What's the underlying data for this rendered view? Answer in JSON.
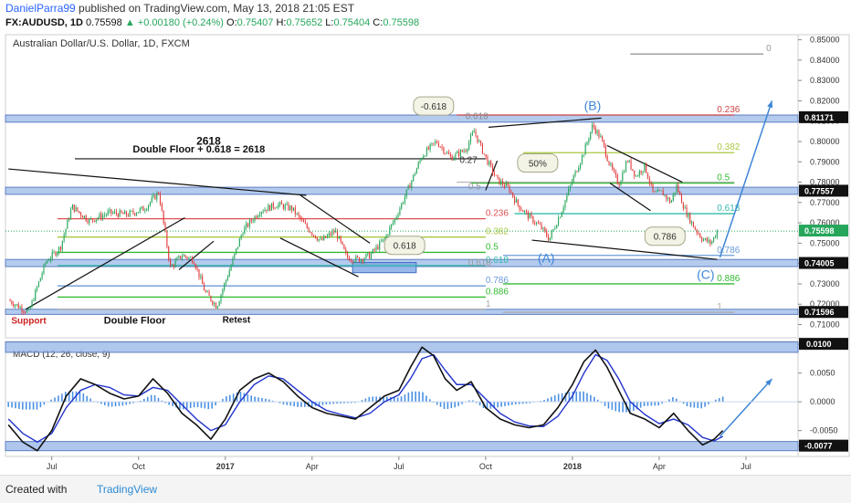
{
  "header": {
    "author": "DanielParra99",
    "published": " published on TradingView.com, May 13, 2018 21:05 EST",
    "symbol": "FX:AUDUSD, 1D",
    "last": "0.75598",
    "change": "▲ +0.00180 (+0.24%)",
    "open": "0.75407",
    "high": "0.75652",
    "low": "0.75404",
    "close": "0.75598"
  },
  "footer": {
    "created_with": "Created with",
    "brand": "TradingView"
  },
  "colors": {
    "bull": "#26a65b",
    "bear": "#e33b3b",
    "zone": "#9bb9e8",
    "macd": "#111111",
    "signal": "#2233cc",
    "hist": "#4a90e2",
    "arrow": "#3d86d6"
  },
  "chart_data": {
    "type": "candlestick",
    "title": "Australian Dollar/U.S. Dollar, 1D, FXCM",
    "x_tick_labels": [
      "Jul",
      "Oct",
      "2017",
      "Apr",
      "Jul",
      "Oct",
      "2018",
      "Apr",
      "Jul"
    ],
    "x_tick_positions_month": [
      1,
      4,
      7,
      10,
      13,
      16,
      19,
      22,
      25
    ],
    "xlim_month": [
      -0.6,
      26.8
    ],
    "price_axis": {
      "ylim": [
        0.7035,
        0.8525
      ],
      "tick_labels": [
        "0.85000",
        "0.84000",
        "0.83000",
        "0.82000",
        "0.81000",
        "0.80000",
        "0.79000",
        "0.78000",
        "0.77000",
        "0.76000",
        "0.75000",
        "0.74000",
        "0.73000",
        "0.72000",
        "0.71000"
      ],
      "ticks": [
        0.85,
        0.84,
        0.83,
        0.82,
        0.81,
        0.8,
        0.79,
        0.78,
        0.77,
        0.76,
        0.75,
        0.74,
        0.73,
        0.72,
        0.71
      ],
      "price_labels": [
        {
          "value": 0.81171,
          "text": "0.81171",
          "color": "#111111"
        },
        {
          "value": 0.77557,
          "text": "0.77557",
          "color": "#111111"
        },
        {
          "value": 0.75598,
          "text": "0.75598",
          "color": "#26a65b"
        },
        {
          "value": 0.74005,
          "text": "0.74005",
          "color": "#111111"
        },
        {
          "value": 0.71596,
          "text": "0.71596",
          "color": "#111111"
        }
      ]
    },
    "macd_axis": {
      "title": "MACD (12, 26, close, 9)",
      "ylim": [
        -0.0095,
        0.0105
      ],
      "tick_labels": [
        "0.0100",
        "0.0050",
        "0.0000",
        "-0.0050",
        "-0.0077"
      ],
      "ticks": [
        0.01,
        0.005,
        0.0,
        -0.005,
        -0.0077
      ]
    },
    "price_path": [
      [
        -0.5,
        0.722
      ],
      [
        0.2,
        0.716
      ],
      [
        0.8,
        0.741
      ],
      [
        1.3,
        0.748
      ],
      [
        1.7,
        0.768
      ],
      [
        2.3,
        0.761
      ],
      [
        3.0,
        0.765
      ],
      [
        3.6,
        0.764
      ],
      [
        4.2,
        0.767
      ],
      [
        4.7,
        0.775
      ],
      [
        5.1,
        0.738
      ],
      [
        5.5,
        0.744
      ],
      [
        5.9,
        0.742
      ],
      [
        6.3,
        0.726
      ],
      [
        6.7,
        0.719
      ],
      [
        7.1,
        0.735
      ],
      [
        7.6,
        0.756
      ],
      [
        8.2,
        0.766
      ],
      [
        8.8,
        0.769
      ],
      [
        9.3,
        0.767
      ],
      [
        9.8,
        0.758
      ],
      [
        10.3,
        0.751
      ],
      [
        10.8,
        0.756
      ],
      [
        11.2,
        0.743
      ],
      [
        11.6,
        0.742
      ],
      [
        12.0,
        0.744
      ],
      [
        12.5,
        0.752
      ],
      [
        12.9,
        0.763
      ],
      [
        13.3,
        0.776
      ],
      [
        13.8,
        0.793
      ],
      [
        14.3,
        0.8
      ],
      [
        14.8,
        0.792
      ],
      [
        15.3,
        0.796
      ],
      [
        15.6,
        0.805
      ],
      [
        16.0,
        0.792
      ],
      [
        16.4,
        0.781
      ],
      [
        16.8,
        0.777
      ],
      [
        17.1,
        0.769
      ],
      [
        17.5,
        0.763
      ],
      [
        17.9,
        0.758
      ],
      [
        18.2,
        0.752
      ],
      [
        18.6,
        0.765
      ],
      [
        19.0,
        0.781
      ],
      [
        19.4,
        0.795
      ],
      [
        19.7,
        0.808
      ],
      [
        20.0,
        0.801
      ],
      [
        20.3,
        0.788
      ],
      [
        20.6,
        0.779
      ],
      [
        20.9,
        0.791
      ],
      [
        21.2,
        0.783
      ],
      [
        21.5,
        0.788
      ],
      [
        21.8,
        0.774
      ],
      [
        22.1,
        0.775
      ],
      [
        22.4,
        0.77
      ],
      [
        22.6,
        0.778
      ],
      [
        22.9,
        0.766
      ],
      [
        23.2,
        0.758
      ],
      [
        23.5,
        0.752
      ],
      [
        23.8,
        0.75
      ],
      [
        24.0,
        0.756
      ]
    ],
    "macd_path": [
      [
        -0.5,
        -0.004
      ],
      [
        0.0,
        -0.007
      ],
      [
        0.5,
        -0.0085
      ],
      [
        1.0,
        -0.005
      ],
      [
        1.5,
        0.001
      ],
      [
        2.0,
        0.004
      ],
      [
        2.5,
        0.003
      ],
      [
        3.0,
        0.0015
      ],
      [
        3.5,
        0.0005
      ],
      [
        4.0,
        0.001
      ],
      [
        4.5,
        0.004
      ],
      [
        5.0,
        0.0015
      ],
      [
        5.5,
        -0.002
      ],
      [
        6.0,
        -0.004
      ],
      [
        6.5,
        -0.0065
      ],
      [
        7.0,
        -0.003
      ],
      [
        7.5,
        0.002
      ],
      [
        8.0,
        0.004
      ],
      [
        8.5,
        0.005
      ],
      [
        9.0,
        0.0035
      ],
      [
        9.5,
        0.001
      ],
      [
        10.0,
        -0.001
      ],
      [
        10.5,
        -0.002
      ],
      [
        11.0,
        -0.0025
      ],
      [
        11.5,
        -0.003
      ],
      [
        12.0,
        -0.001
      ],
      [
        12.5,
        0.001
      ],
      [
        13.0,
        0.002
      ],
      [
        13.4,
        0.006
      ],
      [
        13.8,
        0.0095
      ],
      [
        14.2,
        0.008
      ],
      [
        14.6,
        0.004
      ],
      [
        15.0,
        0.002
      ],
      [
        15.5,
        0.0035
      ],
      [
        16.0,
        -0.001
      ],
      [
        16.5,
        -0.003
      ],
      [
        17.0,
        -0.004
      ],
      [
        17.5,
        -0.0045
      ],
      [
        18.0,
        -0.004
      ],
      [
        18.5,
        -0.001
      ],
      [
        19.0,
        0.003
      ],
      [
        19.4,
        0.007
      ],
      [
        19.8,
        0.009
      ],
      [
        20.2,
        0.006
      ],
      [
        20.6,
        0.002
      ],
      [
        21.0,
        -0.002
      ],
      [
        21.5,
        -0.003
      ],
      [
        22.0,
        -0.0045
      ],
      [
        22.5,
        -0.002
      ],
      [
        23.0,
        -0.005
      ],
      [
        23.5,
        -0.0075
      ],
      [
        23.9,
        -0.0065
      ],
      [
        24.2,
        -0.005
      ]
    ],
    "signal_path": [
      [
        -0.5,
        -0.003
      ],
      [
        0.0,
        -0.0055
      ],
      [
        0.5,
        -0.007
      ],
      [
        1.0,
        -0.0055
      ],
      [
        1.5,
        -0.001
      ],
      [
        2.0,
        0.002
      ],
      [
        2.5,
        0.003
      ],
      [
        3.0,
        0.0025
      ],
      [
        3.5,
        0.0012
      ],
      [
        4.0,
        0.001
      ],
      [
        4.5,
        0.0025
      ],
      [
        5.0,
        0.002
      ],
      [
        5.5,
        -0.0005
      ],
      [
        6.0,
        -0.003
      ],
      [
        6.5,
        -0.005
      ],
      [
        7.0,
        -0.004
      ],
      [
        7.5,
        0.0
      ],
      [
        8.0,
        0.003
      ],
      [
        8.5,
        0.0045
      ],
      [
        9.0,
        0.004
      ],
      [
        9.5,
        0.002
      ],
      [
        10.0,
        0.0
      ],
      [
        10.5,
        -0.0015
      ],
      [
        11.0,
        -0.0022
      ],
      [
        11.5,
        -0.0028
      ],
      [
        12.0,
        -0.002
      ],
      [
        12.5,
        0.0
      ],
      [
        13.0,
        0.0012
      ],
      [
        13.4,
        0.004
      ],
      [
        13.8,
        0.0075
      ],
      [
        14.2,
        0.0082
      ],
      [
        14.6,
        0.0055
      ],
      [
        15.0,
        0.003
      ],
      [
        15.5,
        0.003
      ],
      [
        16.0,
        0.0005
      ],
      [
        16.5,
        -0.002
      ],
      [
        17.0,
        -0.0035
      ],
      [
        17.5,
        -0.0042
      ],
      [
        18.0,
        -0.0043
      ],
      [
        18.5,
        -0.0025
      ],
      [
        19.0,
        0.001
      ],
      [
        19.4,
        0.005
      ],
      [
        19.8,
        0.0082
      ],
      [
        20.2,
        0.0072
      ],
      [
        20.6,
        0.004
      ],
      [
        21.0,
        0.0
      ],
      [
        21.5,
        -0.0022
      ],
      [
        22.0,
        -0.0038
      ],
      [
        22.5,
        -0.003
      ],
      [
        23.0,
        -0.004
      ],
      [
        23.5,
        -0.0062
      ],
      [
        23.9,
        -0.0068
      ],
      [
        24.2,
        -0.006
      ]
    ],
    "zones": [
      {
        "y1": 0.8095,
        "y2": 0.813
      },
      {
        "y1": 0.774,
        "y2": 0.7775
      },
      {
        "y1": 0.7385,
        "y2": 0.742
      },
      {
        "y1": 0.715,
        "y2": 0.7175
      }
    ],
    "fib_lines": [
      {
        "m1": 15.0,
        "m2": 24.6,
        "y": 0.78,
        "color": "#bbbbbb",
        "label": "",
        "lm": 0
      },
      {
        "m1": 21.0,
        "m2": 25.6,
        "y": 0.843,
        "color": "#999999",
        "label": "0",
        "lm": 25.7
      },
      {
        "m1": 15.0,
        "m2": 24.6,
        "y": 0.813,
        "color": "#cc4444",
        "label": "0.236",
        "lm": 24.0
      },
      {
        "m1": 17.3,
        "m2": 24.6,
        "y": 0.7945,
        "color": "#a8c840",
        "label": "0.382",
        "lm": 24.0
      },
      {
        "m1": 15.5,
        "m2": 24.6,
        "y": 0.7795,
        "color": "#33bb33",
        "label": "0.5",
        "lm": 24.0
      },
      {
        "m1": 17.0,
        "m2": 24.6,
        "y": 0.7645,
        "color": "#33bbaa",
        "label": "0.618",
        "lm": 24.0
      },
      {
        "m1": 16.6,
        "m2": 24.6,
        "y": 0.744,
        "color": "#6a9bd8",
        "label": "0.786",
        "lm": 24.0
      },
      {
        "m1": 16.6,
        "m2": 24.6,
        "y": 0.73,
        "color": "#33bb33",
        "label": "0.886",
        "lm": 24.0
      },
      {
        "m1": 1.2,
        "m2": 16.0,
        "y": 0.762,
        "color": "#e05050",
        "label": "0.236",
        "lm": 16.0
      },
      {
        "m1": 1.2,
        "m2": 16.0,
        "y": 0.753,
        "color": "#a8c840",
        "label": "0.382",
        "lm": 16.0
      },
      {
        "m1": 1.2,
        "m2": 16.0,
        "y": 0.7455,
        "color": "#33bb33",
        "label": "0.5",
        "lm": 16.0
      },
      {
        "m1": 1.2,
        "m2": 16.0,
        "y": 0.739,
        "color": "#33bbaa",
        "label": "0.618",
        "lm": 16.0
      },
      {
        "m1": 1.2,
        "m2": 16.0,
        "y": 0.729,
        "color": "#6a9bd8",
        "label": "0.786",
        "lm": 16.0
      },
      {
        "m1": 1.2,
        "m2": 16.0,
        "y": 0.7235,
        "color": "#33bb33",
        "label": "0.886",
        "lm": 16.0
      },
      {
        "m1": 1.2,
        "m2": 16.0,
        "y": 0.7175,
        "color": "#aaaaaa",
        "label": "1",
        "lm": 16.0
      },
      {
        "m1": 16.6,
        "m2": 24.6,
        "y": 0.716,
        "color": "#aaaaaa",
        "label": "1",
        "lm": 24.0
      }
    ],
    "labels": [
      {
        "text": "2618",
        "m": 6.0,
        "y": 0.7985,
        "bold": true,
        "color": "#111111",
        "size": 12
      },
      {
        "text": "Double Floor + 0.618 = 2618",
        "m": 3.8,
        "y": 0.7945,
        "bold": true,
        "color": "#111111",
        "size": 11
      },
      {
        "text": "Support",
        "m": -0.4,
        "y": 0.7105,
        "bold": true,
        "color": "#cc2222",
        "size": 10
      },
      {
        "text": "Double Floor",
        "m": 2.8,
        "y": 0.7105,
        "bold": true,
        "color": "#111111",
        "size": 11
      },
      {
        "text": "Retest",
        "m": 6.9,
        "y": 0.711,
        "bold": true,
        "color": "#111111",
        "size": 10
      },
      {
        "text": "(B)",
        "m": 19.4,
        "y": 0.8155,
        "bold": false,
        "color": "#3d86d6",
        "size": 14
      },
      {
        "text": "(A)",
        "m": 17.8,
        "y": 0.7405,
        "bold": false,
        "color": "#3d86d6",
        "size": 14
      },
      {
        "text": "(C)",
        "m": 23.3,
        "y": 0.7325,
        "bold": false,
        "color": "#3d86d6",
        "size": 14
      },
      {
        "text": "0.618",
        "m": 15.3,
        "y": 0.811,
        "bold": false,
        "color": "#888888",
        "size": 10
      },
      {
        "text": "0.27",
        "m": 15.1,
        "y": 0.7895,
        "bold": false,
        "color": "#333333",
        "size": 10
      },
      {
        "text": "0.5",
        "m": 15.4,
        "y": 0.7765,
        "bold": false,
        "color": "#999999",
        "size": 10
      },
      {
        "text": "0.618",
        "m": 15.4,
        "y": 0.739,
        "bold": false,
        "color": "#999999",
        "size": 10
      }
    ],
    "callouts": [
      {
        "text": "-0.618",
        "m": 14.2,
        "y": 0.817
      },
      {
        "text": "50%",
        "m": 17.8,
        "y": 0.789
      },
      {
        "text": "0.618",
        "m": 13.2,
        "y": 0.7485
      },
      {
        "text": "0.786",
        "m": 22.2,
        "y": 0.753
      }
    ]
  }
}
